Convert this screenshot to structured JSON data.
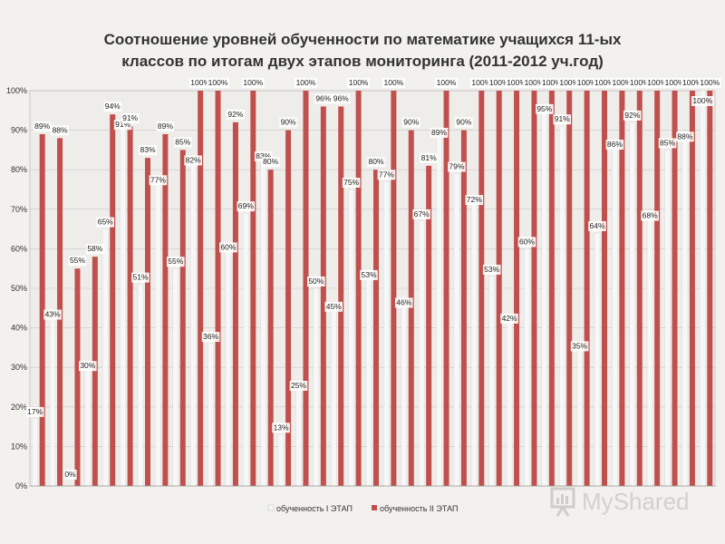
{
  "chart_data": {
    "type": "bar",
    "title_lines": [
      "Соотношение уровней обученности по математике учащихся 11-ых",
      "классов по итогам двух этапов мониторинга (2011-2012 уч.год)"
    ],
    "ylim": [
      0,
      100
    ],
    "y_ticks": [
      "0%",
      "10%",
      "20%",
      "30%",
      "40%",
      "50%",
      "60%",
      "70%",
      "80%",
      "90%",
      "100%"
    ],
    "series": [
      {
        "name": "обученность I ЭТАП",
        "color": "#f7f7f7",
        "values": [
          17,
          43,
          0,
          30,
          65,
          91,
          51,
          77,
          55,
          82,
          36,
          60,
          69,
          83,
          13,
          25,
          50,
          45,
          75,
          53,
          77,
          46,
          67,
          89,
          79,
          72,
          53,
          42,
          60,
          95,
          91,
          35,
          64,
          86,
          92,
          68,
          85,
          88,
          100
        ]
      },
      {
        "name": "обученность II ЭТАП",
        "color": "#c0504d",
        "values": [
          89,
          88,
          55,
          58,
          94,
          91,
          83,
          89,
          85,
          100,
          100,
          92,
          100,
          80,
          90,
          100,
          96,
          96,
          100,
          80,
          100,
          90,
          81,
          100,
          90,
          100,
          100,
          100,
          100,
          100,
          100,
          100,
          100,
          100,
          100,
          100,
          100,
          100,
          100
        ]
      }
    ],
    "labels_series1": [
      "17%",
      "43%",
      "0%",
      "30%",
      "65%",
      "91%",
      "51%",
      "77%",
      "55%",
      "82%",
      "36%",
      "60%",
      "69%",
      "83%",
      "13%",
      "25%",
      "50%",
      "45%",
      "75%",
      "53%",
      "77%",
      "46%",
      "67%",
      "89%",
      "79%",
      "72%",
      "53%",
      "42%",
      "60%",
      "95%",
      "91%",
      "35%",
      "64%",
      "86%",
      "92%",
      "68%",
      "85%",
      "88%",
      "100%"
    ],
    "labels_series2": [
      "89%",
      "88%",
      "55%",
      "58%",
      "94%",
      "91%",
      "83%",
      "89%",
      "85%",
      "100%",
      "100%",
      "92%",
      "100%",
      "80%",
      "90%",
      "100%",
      "96%",
      "96%",
      "100%",
      "80%",
      "100%",
      "90%",
      "81%",
      "100%",
      "90%",
      "100%",
      "100%",
      "100%",
      "100%",
      "100%",
      "100%",
      "100%",
      "100%",
      "100%",
      "100%",
      "100%",
      "100%",
      "100%",
      "100%"
    ],
    "legend": [
      "обученность I ЭТАП",
      "обученность II ЭТАП"
    ],
    "legend_position": "bottom",
    "grid": true
  },
  "watermark": {
    "text": "MyShared",
    "icon": "presentation-icon",
    "color": "#b0b0b0"
  }
}
